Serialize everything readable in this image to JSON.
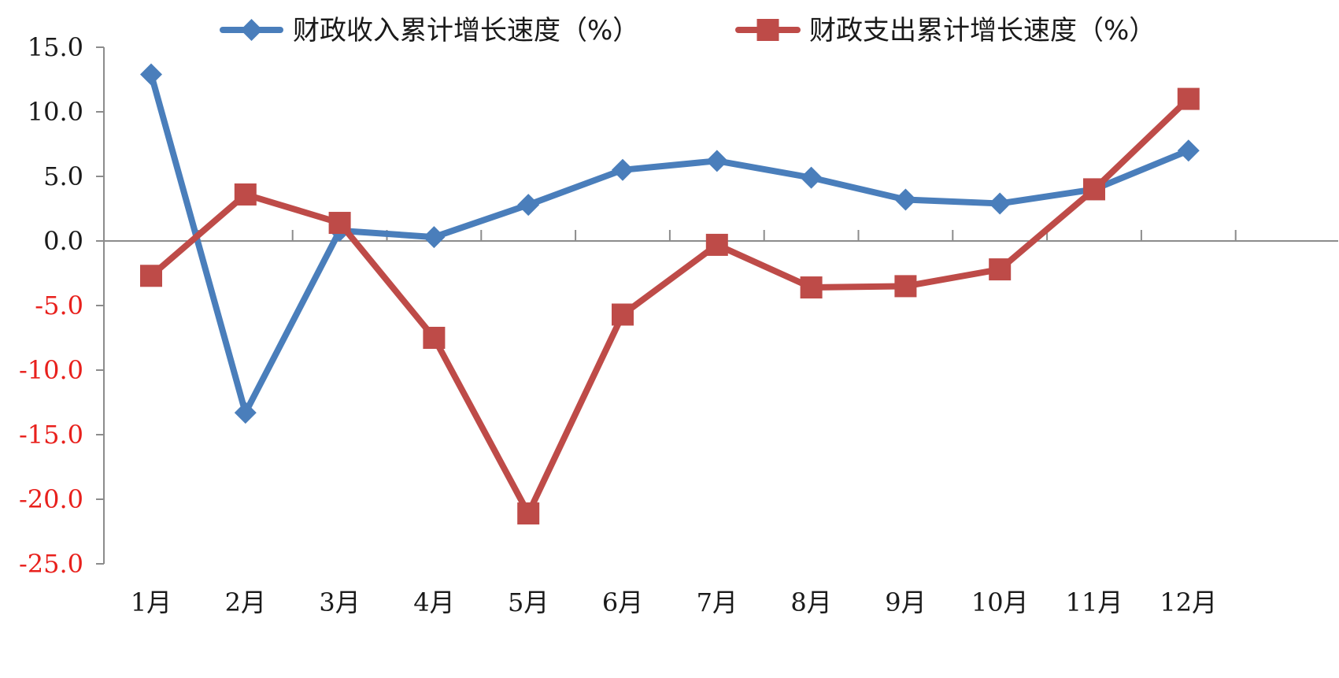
{
  "chart_data": {
    "type": "line",
    "categories": [
      "1月",
      "2月",
      "3月",
      "4月",
      "5月",
      "6月",
      "7月",
      "8月",
      "9月",
      "10月",
      "11月",
      "12月"
    ],
    "series": [
      {
        "name": "财政收入累计增长速度（%）",
        "values": [
          12.9,
          -13.3,
          0.8,
          0.3,
          2.8,
          5.5,
          6.2,
          4.9,
          3.2,
          2.9,
          4.0,
          7.0
        ],
        "color": "#4a7ebb",
        "marker": "diamond"
      },
      {
        "name": "财政支出累计增长速度（%）",
        "values": [
          -2.7,
          3.6,
          1.4,
          -7.5,
          -21.1,
          -5.7,
          -0.3,
          -3.6,
          -3.5,
          -2.2,
          4.0,
          11.0
        ],
        "color": "#be4b48",
        "marker": "square"
      }
    ],
    "yticks": [
      "15.0",
      "10.0",
      "5.0",
      "0.0",
      "-5.0",
      "-10.0",
      "-15.0",
      "-20.0",
      "-25.0"
    ],
    "ylim": [
      -25,
      15
    ],
    "title": "",
    "xlabel": "",
    "ylabel": "",
    "legend_position": "top",
    "grid": false,
    "colors": {
      "positive_tick": "#1a1a1a",
      "negative_tick": "#e8201c",
      "axis": "#8c8c8c"
    }
  }
}
